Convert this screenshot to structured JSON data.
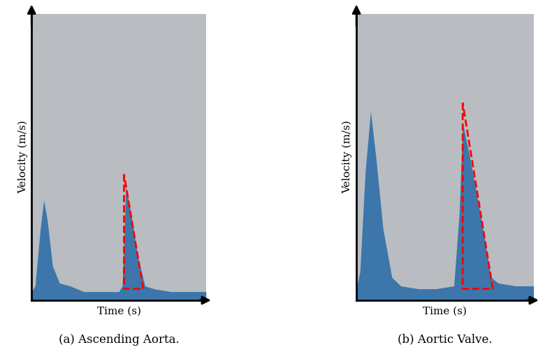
{
  "chart_data": [
    {
      "type": "area",
      "caption": "(a) Ascending Aorta.",
      "x_label": "Time (s)",
      "y_label": "Velocity (m/s)",
      "xlim": [
        0,
        1
      ],
      "ylim": [
        0,
        1
      ],
      "tick_labels": false,
      "series": [
        {
          "type": "area",
          "color": "#2f6fa8",
          "x": [
            0,
            0.02,
            0.05,
            0.07,
            0.09,
            0.12,
            0.16,
            0.22,
            0.3,
            0.4,
            0.5,
            0.52,
            0.54,
            0.57,
            0.61,
            0.65,
            0.7,
            0.8,
            0.9,
            1.0
          ],
          "values": [
            0.03,
            0.05,
            0.25,
            0.35,
            0.28,
            0.12,
            0.06,
            0.05,
            0.03,
            0.03,
            0.03,
            0.05,
            0.4,
            0.3,
            0.15,
            0.05,
            0.04,
            0.03,
            0.03,
            0.03
          ]
        },
        {
          "type": "line",
          "color": "#ff0000",
          "line_style": "dashed",
          "x": [
            0.53,
            0.53,
            0.64,
            0.53
          ],
          "values": [
            0.44,
            0.04,
            0.04,
            0.44
          ]
        }
      ]
    },
    {
      "type": "area",
      "caption": "(b) Aortic Valve.",
      "x_label": "Time (s)",
      "y_label": "Velocity (m/s)",
      "xlim": [
        0,
        1
      ],
      "ylim": [
        0,
        1
      ],
      "tick_labels": false,
      "series": [
        {
          "type": "area",
          "color": "#2f6fa8",
          "x": [
            0,
            0.02,
            0.05,
            0.08,
            0.11,
            0.15,
            0.2,
            0.25,
            0.35,
            0.45,
            0.55,
            0.58,
            0.6,
            0.64,
            0.7,
            0.76,
            0.8,
            0.9,
            1.0
          ],
          "values": [
            0.04,
            0.1,
            0.45,
            0.66,
            0.5,
            0.25,
            0.08,
            0.05,
            0.04,
            0.04,
            0.05,
            0.3,
            0.62,
            0.5,
            0.3,
            0.08,
            0.06,
            0.05,
            0.05
          ]
        },
        {
          "type": "line",
          "color": "#ff0000",
          "line_style": "dashed",
          "x": [
            0.6,
            0.6,
            0.77,
            0.6
          ],
          "values": [
            0.69,
            0.04,
            0.04,
            0.69
          ]
        }
      ]
    }
  ]
}
